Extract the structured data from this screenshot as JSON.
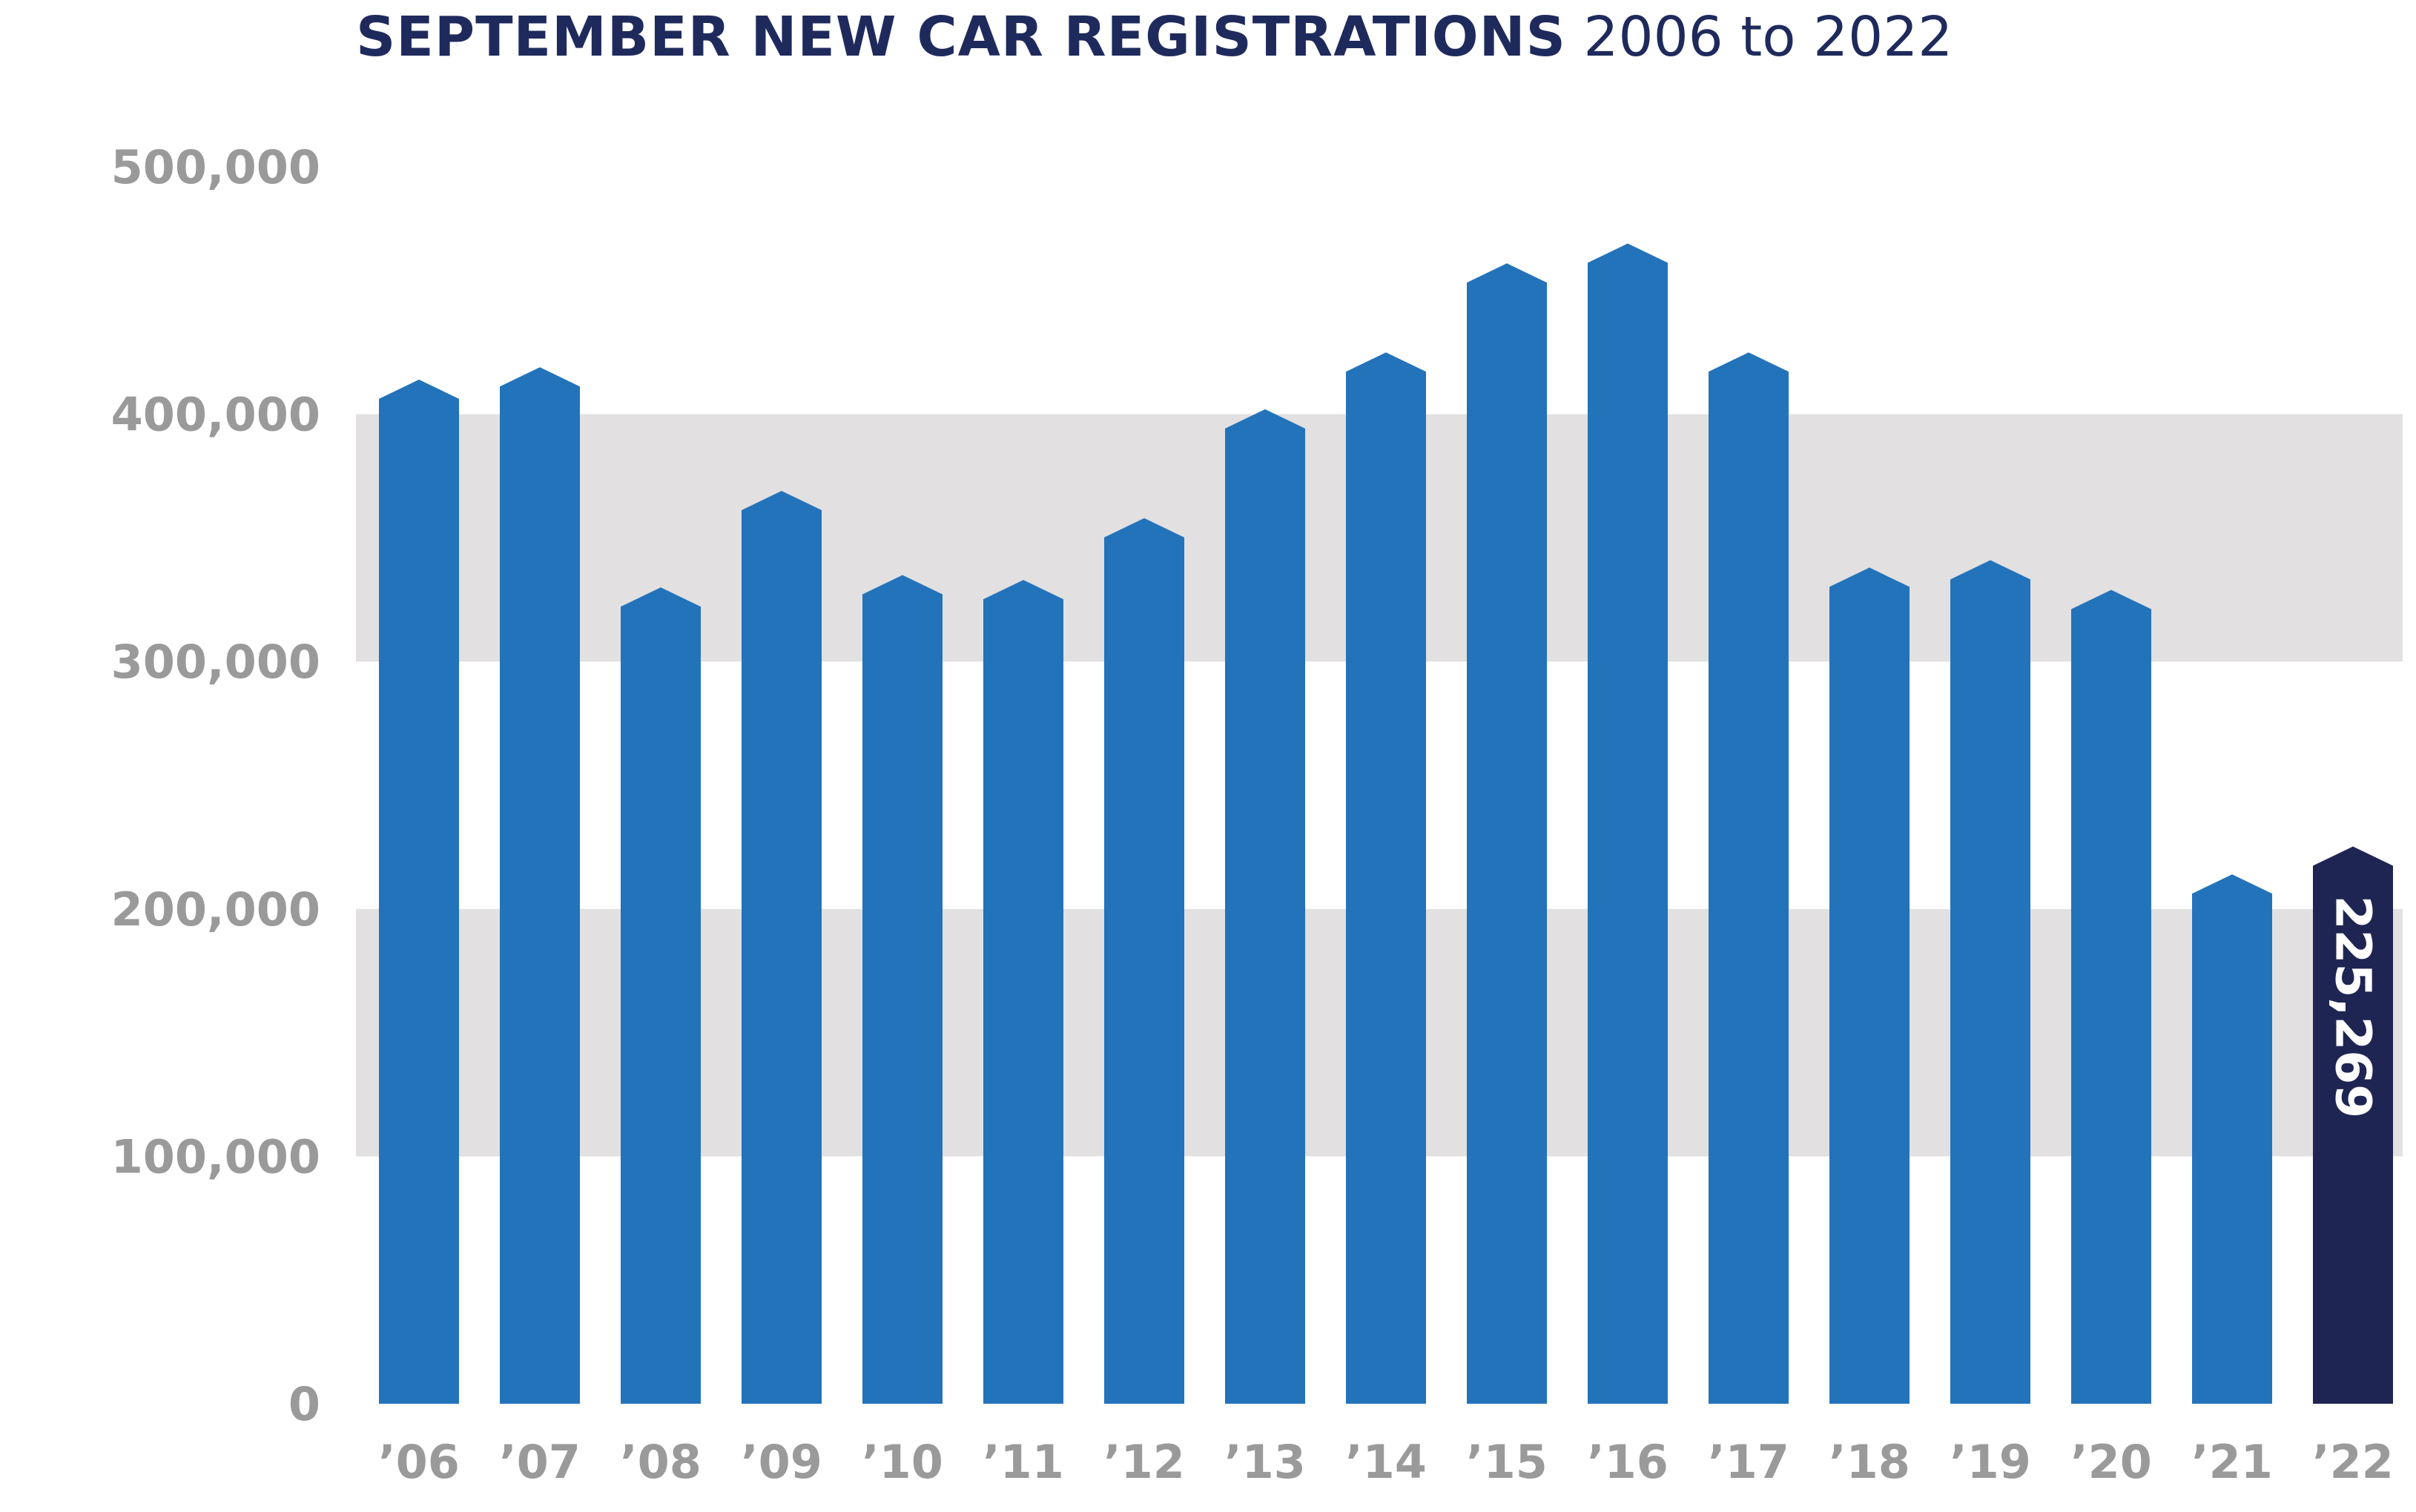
{
  "chart_data": {
    "type": "bar",
    "title": "SEPTEMBER NEW CAR REGISTRATIONS",
    "subtitle": "2006 to 2022",
    "xlabel": "",
    "ylabel": "",
    "ylim": [
      0,
      500000
    ],
    "yticks": [
      "0",
      "100,000",
      "200,000",
      "300,000",
      "400,000",
      "500,000"
    ],
    "ytick_values": [
      0,
      100000,
      200000,
      300000,
      400000,
      500000
    ],
    "banded_ranges": [
      [
        100000,
        200000
      ],
      [
        300000,
        400000
      ]
    ],
    "categories": [
      "’06",
      "’07",
      "’08",
      "’09",
      "’10",
      "’11",
      "’12",
      "’13",
      "’14",
      "’15",
      "’16",
      "’17",
      "’18",
      "’19",
      "’20",
      "’21",
      "’22"
    ],
    "values": [
      414000,
      419000,
      330000,
      369000,
      335000,
      333000,
      358000,
      402000,
      425000,
      461000,
      469000,
      425000,
      338000,
      341000,
      329000,
      214000,
      225269
    ],
    "highlight_index": 16,
    "data_labels": [
      "",
      "",
      "",
      "",
      "",
      "",
      "",
      "",
      "",
      "",
      "",
      "",
      "",
      "",
      "",
      "",
      "225,269"
    ],
    "colors": {
      "bar": "#2373ba",
      "highlight": "#1f2553",
      "band": "#e2e0e1",
      "title": "#1f2a5c",
      "tick": "#9a9a9a"
    },
    "grid": false,
    "legend": "none"
  }
}
